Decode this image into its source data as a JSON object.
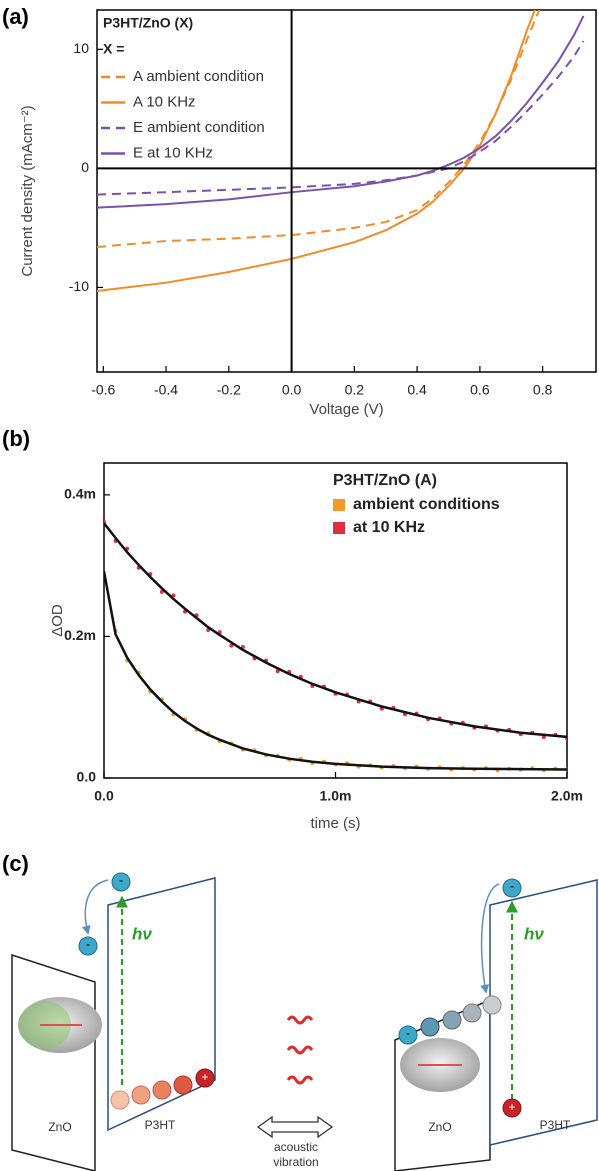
{
  "chart_data": [
    {
      "type": "line",
      "panel_label": "(a)",
      "x_label": "Voltage (V)",
      "y_label": "Current density (mAcm⁻²)",
      "legend_title": "P3HT/ZnO  (X)",
      "legend_subtitle": "X =",
      "xlim": [
        -0.62,
        0.97
      ],
      "ylim": [
        -17.1,
        13.3
      ],
      "xticks": [
        -0.6,
        -0.4,
        -0.2,
        {
          "value": 0,
          "label": "0.0"
        },
        0.2,
        0.4,
        0.6,
        0.8
      ],
      "yticks": [
        -10,
        0,
        10
      ],
      "x": [
        -0.62,
        -0.4,
        -0.2,
        0,
        0.2,
        0.3,
        0.4,
        0.45,
        0.5,
        0.55,
        0.6,
        0.65,
        0.7,
        0.75,
        0.8,
        0.85,
        0.9,
        0.93
      ],
      "series": [
        {
          "name": "A ambient condition",
          "color": "#f28c28",
          "style": "dashed",
          "values": [
            -6.6,
            -6.1,
            -5.9,
            -5.6,
            -5.0,
            -4.5,
            -3.5,
            -2.5,
            -1.2,
            0.3,
            2.2,
            4.6,
            7.5,
            10.8,
            14,
            null,
            null,
            null
          ]
        },
        {
          "name": "A 10 KHz",
          "color": "#f28c28",
          "style": "solid",
          "values": [
            -10.3,
            -9.6,
            -8.7,
            -7.6,
            -6.2,
            -5.2,
            -3.8,
            -2.8,
            -1.5,
            0.0,
            1.9,
            4.6,
            7.8,
            11.6,
            15,
            null,
            null,
            null
          ]
        },
        {
          "name": "E ambient condition",
          "color": "#7b52ab",
          "style": "dashed",
          "values": [
            -2.2,
            -2.0,
            -1.8,
            -1.6,
            -1.3,
            -1.0,
            -0.6,
            -0.3,
            0.0,
            0.6,
            1.4,
            2.3,
            3.5,
            4.8,
            6.2,
            7.7,
            9.4,
            10.7
          ]
        },
        {
          "name": "E at 10 KHz",
          "color": "#7b52ab",
          "style": "solid",
          "values": [
            -3.3,
            -3.0,
            -2.6,
            -2.0,
            -1.5,
            -1.1,
            -0.6,
            -0.2,
            0.3,
            0.9,
            1.7,
            2.7,
            4.0,
            5.5,
            7.2,
            9.0,
            11.2,
            12.8
          ]
        }
      ]
    },
    {
      "type": "scatter",
      "panel_label": "(b)",
      "x_label": "time (s)",
      "y_label": "ΔOD",
      "legend_title": "P3HT/ZnO  (A)",
      "xlim": [
        0,
        0.002
      ],
      "ylim": [
        0,
        0.000445
      ],
      "xticks": [
        {
          "value": 0,
          "label": "0.0"
        },
        {
          "value": 0.001,
          "label": "1.0m"
        },
        {
          "value": 0.002,
          "label": "2.0m"
        }
      ],
      "yticks": [
        {
          "value": 0,
          "label": "0.0"
        },
        {
          "value": 0.0002,
          "label": "0.2m"
        },
        {
          "value": 0.0004,
          "label": "0.4m"
        }
      ],
      "x": [
        0,
        5e-05,
        0.0001,
        0.00015,
        0.0002,
        0.00025,
        0.0003,
        0.00035,
        0.0004,
        0.00045,
        0.0005,
        0.00055,
        0.0006,
        0.00065,
        0.0007,
        0.00075,
        0.0008,
        0.00085,
        0.0009,
        0.00095,
        0.001,
        0.00105,
        0.0011,
        0.00115,
        0.0012,
        0.00125,
        0.0013,
        0.00135,
        0.0014,
        0.00145,
        0.0015,
        0.00155,
        0.0016,
        0.00165,
        0.0017,
        0.00175,
        0.0018,
        0.00185,
        0.0019,
        0.00195,
        0.002
      ],
      "series": [
        {
          "name": "ambient conditions",
          "color": "#f39a2b",
          "values": [
            0.000285,
            0.000208,
            0.000166,
            0.000149,
            0.000122,
            0.000111,
            9e-05,
            8.3e-05,
            6.8e-05,
            6.3e-05,
            5.2e-05,
            4.9e-05,
            4e-05,
            3.9e-05,
            3.2e-05,
            3.1e-05,
            2.6e-05,
            2.7e-05,
            2.1e-05,
            2.3e-05,
            1.9e-05,
            2.1e-05,
            1.6e-05,
            1.8e-05,
            1.5e-05,
            1.7e-05,
            1.4e-05,
            1.6e-05,
            1.3e-05,
            1.5e-05,
            1.2e-05,
            1.4e-05,
            1.2e-05,
            1.4e-05,
            1.1e-05,
            1.3e-05,
            1.2e-05,
            1.4e-05,
            1.1e-05,
            1.3e-05,
            1.2e-05
          ]
        },
        {
          "name": "at 10 KHz",
          "color": "#e0303f",
          "values": [
            0.000362,
            0.000335,
            0.000324,
            0.000297,
            0.000288,
            0.000263,
            0.000258,
            0.000235,
            0.00023,
            0.000209,
            0.000206,
            0.000187,
            0.000185,
            0.000169,
            0.000166,
            0.000151,
            0.00015,
            0.000143,
            0.00013,
            0.000129,
            0.000119,
            0.000118,
            0.000108,
            0.000108,
            9.8e-05,
            9.9e-05,
            9e-05,
            9.1e-05,
            8.3e-05,
            8.4e-05,
            7.7e-05,
            7.8e-05,
            7.1e-05,
            7.3e-05,
            6.7e-05,
            6.8e-05,
            6.2e-05,
            6.4e-05,
            5.8e-05,
            6.1e-05,
            5.6e-05
          ]
        }
      ],
      "fits": [
        {
          "color": "#111111",
          "x": [
            0,
            5e-05,
            0.0001,
            0.00015,
            0.0002,
            0.00025,
            0.0003,
            0.00035,
            0.0004,
            0.00045,
            0.0005,
            0.0006,
            0.0007,
            0.0008,
            0.0009,
            0.001,
            0.0012,
            0.0014,
            0.0016,
            0.0018,
            0.002
          ],
          "values": [
            0.000292,
            0.000203,
            0.00017,
            0.0001454,
            0.000125,
            0.000108,
            9.3e-05,
            8.05e-05,
            7e-05,
            6.1e-05,
            5.4e-05,
            4.18e-05,
            3.33e-05,
            2.73e-05,
            2.3e-05,
            2e-05,
            1.6e-05,
            1.4e-05,
            1.3e-05,
            1.25e-05,
            1.2e-05
          ]
        },
        {
          "color": "#111111",
          "x": [
            0,
            5e-05,
            0.0001,
            0.00015,
            0.0002,
            0.00025,
            0.0003,
            0.00035,
            0.0004,
            0.00045,
            0.0005,
            0.0006,
            0.0007,
            0.0008,
            0.0009,
            0.001,
            0.0012,
            0.0014,
            0.0016,
            0.0018,
            0.002
          ],
          "values": [
            0.00036,
            0.000339,
            0.000319,
            0.000301,
            0.000284,
            0.000268,
            0.000253,
            0.000239,
            0.000226,
            0.000213,
            0.000202,
            0.000181,
            0.000163,
            0.000147,
            0.000133,
            0.000121,
            0.000101,
            8.5e-05,
            7.3e-05,
            6.4e-05,
            5.8e-05
          ]
        }
      ]
    }
  ],
  "diagram": {
    "panel_label": "(c)",
    "left": {
      "zno": "ZnO",
      "p3ht": "P3HT",
      "hv": "hν"
    },
    "right": {
      "zno": "ZnO",
      "p3ht": "P3HT",
      "hv": "hν"
    },
    "electron": "-",
    "hole": "+",
    "arrow_label": [
      "acoustic",
      "vibration"
    ]
  }
}
